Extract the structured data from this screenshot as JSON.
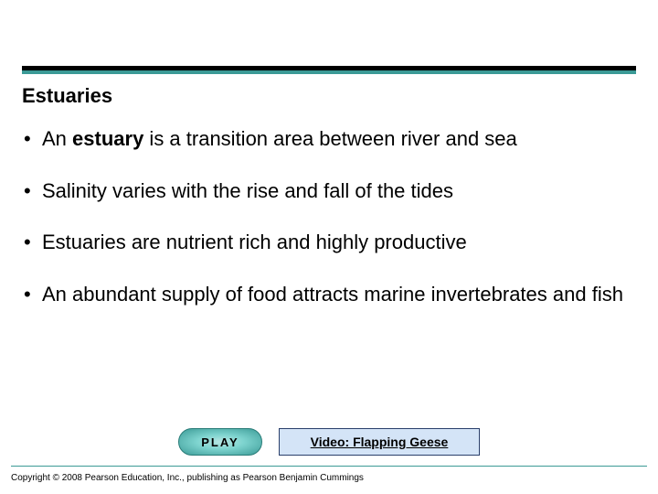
{
  "colors": {
    "accent": "#3b9a96",
    "rule_black": "#000000",
    "play_gradient_inner": "#b8e6e3",
    "play_gradient_mid": "#7ed4cf",
    "play_gradient_outer": "#3b9a96",
    "play_border": "#2a7c78",
    "video_bg": "#d4e4f7",
    "video_border": "#2a3f6b",
    "page_bg": "#ffffff"
  },
  "title": "Estuaries",
  "bullets": [
    {
      "prefix": "An ",
      "bold": "estuary",
      "suffix": " is a transition area between river and sea"
    },
    {
      "text": "Salinity varies with the rise and fall of the tides"
    },
    {
      "text": "Estuaries are nutrient rich and highly productive"
    },
    {
      "text": "An abundant supply of food attracts marine invertebrates and fish"
    }
  ],
  "play_label": "PLAY",
  "video_label": "Video: Flapping Geese",
  "copyright": "Copyright © 2008 Pearson Education, Inc., publishing as Pearson Benjamin Cummings"
}
